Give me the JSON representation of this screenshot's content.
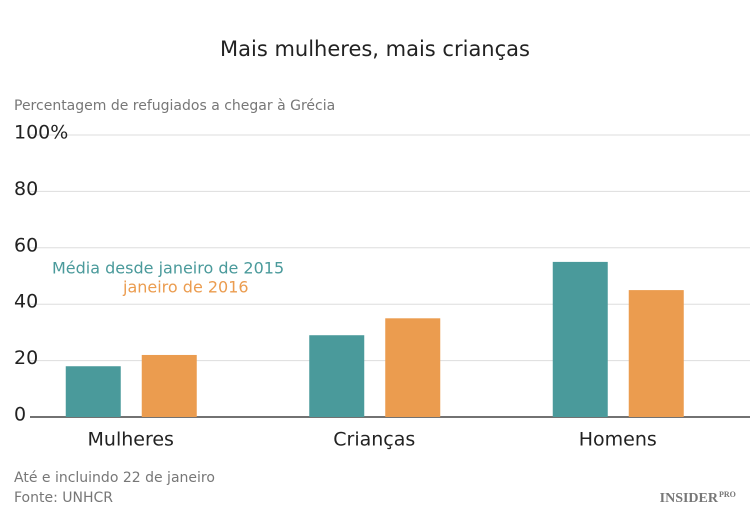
{
  "chart_data": {
    "type": "bar",
    "title": "Mais mulheres, mais crianças",
    "subtitle": "Percentagem de refugiados a chegar à Grécia",
    "categories": [
      "Mulheres",
      "Crianças",
      "Homens"
    ],
    "series": [
      {
        "name": "Média desde janeiro de 2015",
        "color": "#4a9a9b",
        "values": [
          18,
          29,
          55
        ]
      },
      {
        "name": "janeiro de 2016",
        "color": "#eb9c4f",
        "values": [
          22,
          35,
          45
        ]
      }
    ],
    "ylim": [
      0,
      100
    ],
    "yticks": [
      0,
      20,
      40,
      60,
      80,
      {
        "value": 100,
        "label": "100%"
      }
    ],
    "grid": true,
    "notes": [
      "Até e incluindo 22 de janeiro",
      "Fonte: UNHCR"
    ],
    "logo": {
      "name": "INSIDER",
      "suffix": "PRO"
    }
  }
}
